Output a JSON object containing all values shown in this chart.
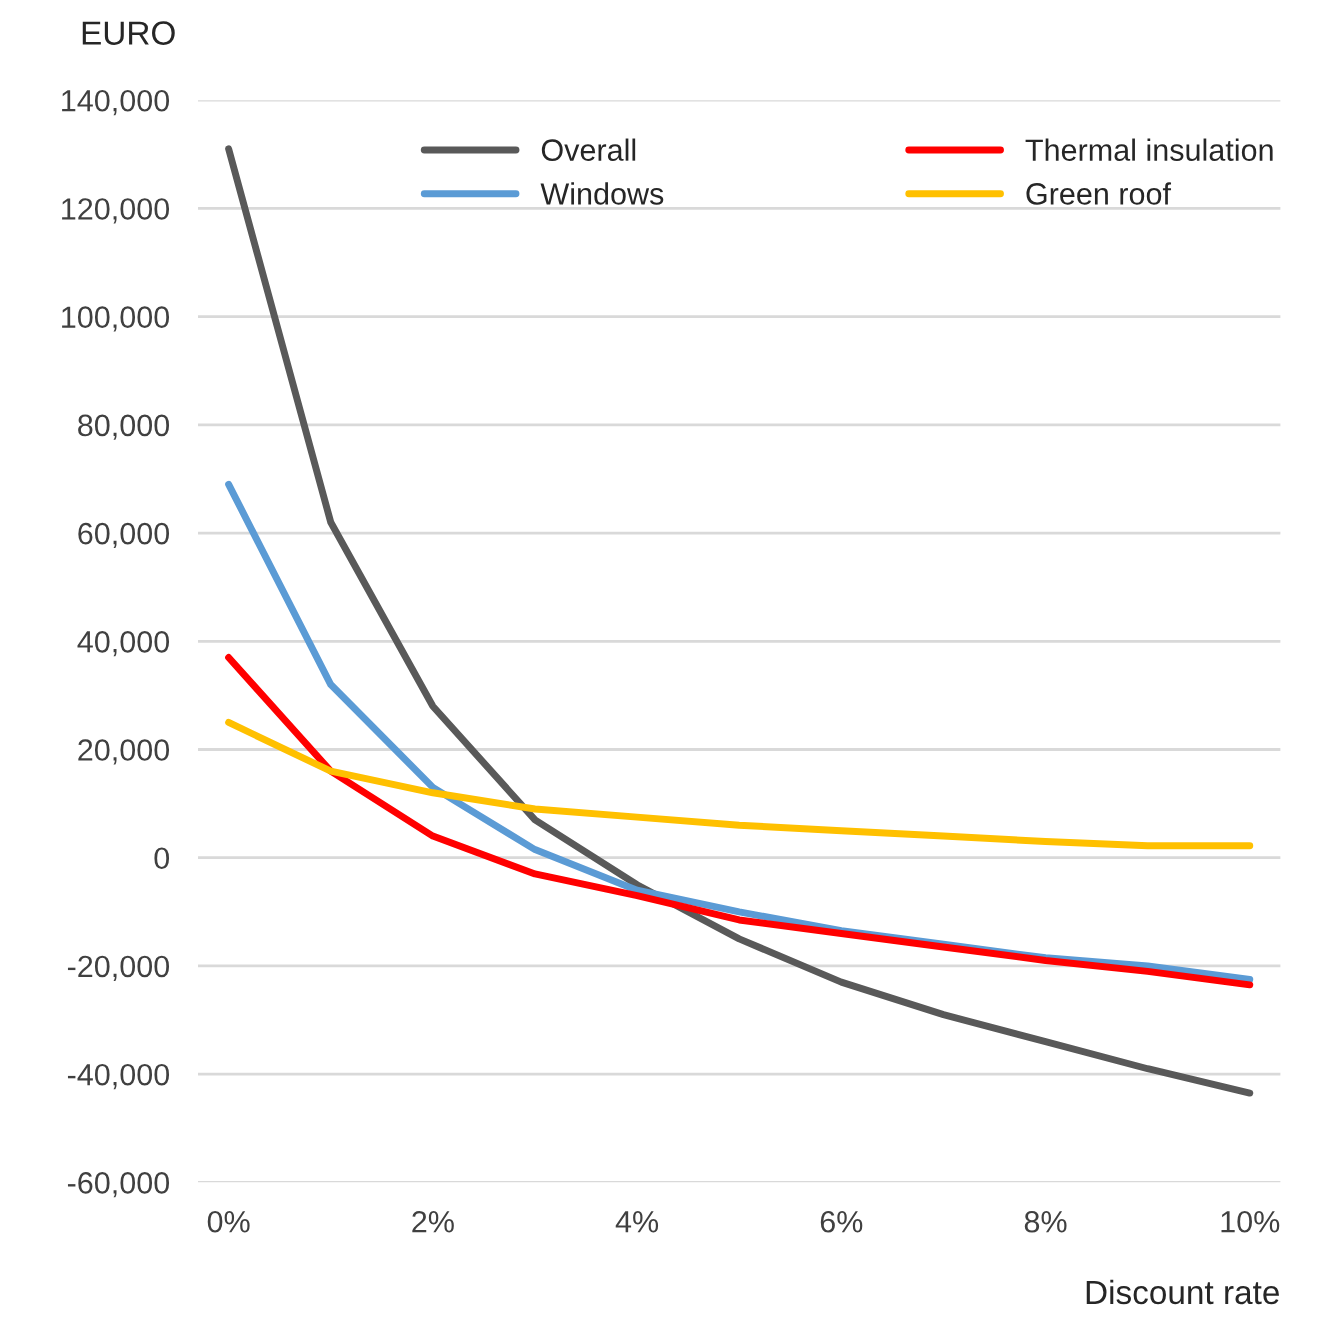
{
  "chart_data": {
    "type": "line",
    "xlabel": "Discount rate",
    "ylabel": "EURO",
    "x": [
      0,
      1,
      2,
      3,
      4,
      5,
      6,
      7,
      8,
      9,
      10
    ],
    "series": [
      {
        "name": "Overall",
        "color": "#595959",
        "values": [
          131000,
          62000,
          28000,
          7000,
          -5000,
          -15000,
          -23000,
          -29000,
          -34000,
          -39000,
          -43500
        ]
      },
      {
        "name": "Windows",
        "color": "#5b9bd5",
        "values": [
          69000,
          32000,
          13000,
          1500,
          -6000,
          -10000,
          -13500,
          -16000,
          -18500,
          -20000,
          -22500
        ]
      },
      {
        "name": "Thermal insulation",
        "color": "#ff0000",
        "values": [
          37000,
          16000,
          4000,
          -3000,
          -7000,
          -11500,
          -14000,
          -16500,
          -19000,
          -21000,
          -23500
        ]
      },
      {
        "name": "Green roof",
        "color": "#ffc000",
        "values": [
          25000,
          16000,
          12000,
          9000,
          7500,
          6000,
          5000,
          4000,
          3000,
          2200,
          2200
        ]
      }
    ],
    "xlim": [
      -0.3,
      10.3
    ],
    "xticks": [
      {
        "value": 0,
        "label": "0%"
      },
      {
        "value": 2,
        "label": "2%"
      },
      {
        "value": 4,
        "label": "4%"
      },
      {
        "value": 6,
        "label": "6%"
      },
      {
        "value": 8,
        "label": "8%"
      },
      {
        "value": 10,
        "label": "10%"
      }
    ],
    "ylim": [
      -60000,
      140000
    ],
    "yticks": [
      {
        "value": -60000,
        "label": "-60,000"
      },
      {
        "value": -40000,
        "label": "-40,000"
      },
      {
        "value": -20000,
        "label": "-20,000"
      },
      {
        "value": 0,
        "label": "0"
      },
      {
        "value": 20000,
        "label": "20,000"
      },
      {
        "value": 40000,
        "label": "40,000"
      },
      {
        "value": 60000,
        "label": "60,000"
      },
      {
        "value": 80000,
        "label": "80,000"
      },
      {
        "value": 100000,
        "label": "100,000"
      },
      {
        "value": 120000,
        "label": "120,000"
      },
      {
        "value": 140000,
        "label": "140,000"
      }
    ],
    "grid": "y",
    "legend": "top right"
  }
}
